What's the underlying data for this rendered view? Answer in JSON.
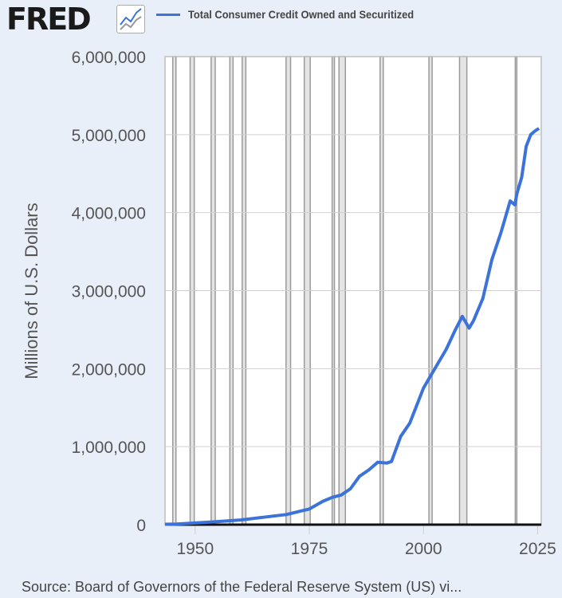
{
  "header": {
    "logo": "FRED",
    "logo_icon": "chart-line-icon"
  },
  "legend": {
    "label": "Total Consumer Credit Owned and Securitized",
    "color": "#3b73d9"
  },
  "source": "Source: Board of Governors of the Federal Reserve System (US) vi...",
  "chart_data": {
    "type": "line",
    "title": "",
    "xlabel": "",
    "ylabel": "Millions of U.S. Dollars",
    "xlim": [
      1943.4,
      2025.8
    ],
    "ylim": [
      0,
      6000000
    ],
    "grid": false,
    "legend_position": "top",
    "yticks": [
      0,
      1000000,
      2000000,
      3000000,
      4000000,
      5000000,
      6000000
    ],
    "ytick_labels": [
      "0",
      "1,000,000",
      "2,000,000",
      "3,000,000",
      "4,000,000",
      "5,000,000",
      "6,000,000"
    ],
    "xticks": [
      1950,
      1975,
      2000,
      2025
    ],
    "xtick_labels": [
      "1950",
      "1975",
      "2000",
      "2025"
    ],
    "recessions": [
      [
        1945.1,
        1945.8
      ],
      [
        1948.9,
        1949.8
      ],
      [
        1953.5,
        1954.4
      ],
      [
        1957.6,
        1958.3
      ],
      [
        1960.3,
        1961.1
      ],
      [
        1969.9,
        1970.9
      ],
      [
        1973.9,
        1975.2
      ],
      [
        1980.0,
        1980.5
      ],
      [
        1981.5,
        1982.9
      ],
      [
        1990.5,
        1991.2
      ],
      [
        2001.2,
        2001.9
      ],
      [
        2007.9,
        2009.5
      ],
      [
        2020.1,
        2020.3
      ]
    ],
    "series": [
      {
        "name": "Total Consumer Credit Owned and Securitized",
        "color": "#3b73d9",
        "x": [
          1943.4,
          1946,
          1950,
          1955,
          1960,
          1965,
          1970,
          1975,
          1978,
          1980,
          1982,
          1984,
          1986,
          1988,
          1990,
          1992,
          1993,
          1995,
          1997,
          2000,
          2003,
          2005,
          2007,
          2008.5,
          2010,
          2011,
          2013,
          2015,
          2017,
          2019,
          2020,
          2020.5,
          2021.5,
          2022.5,
          2023.5,
          2024.5,
          2025.3
        ],
        "values": [
          5000,
          8000,
          21000,
          40000,
          60000,
          95000,
          130000,
          200000,
          300000,
          350000,
          380000,
          460000,
          620000,
          700000,
          800000,
          790000,
          810000,
          1130000,
          1300000,
          1750000,
          2050000,
          2250000,
          2500000,
          2670000,
          2520000,
          2620000,
          2900000,
          3400000,
          3750000,
          4150000,
          4100000,
          4250000,
          4450000,
          4850000,
          5000000,
          5050000,
          5080000
        ]
      }
    ]
  }
}
